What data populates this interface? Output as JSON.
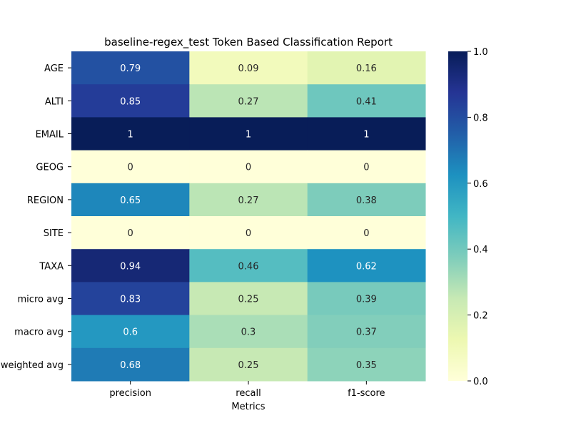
{
  "chart_data": {
    "type": "heatmap",
    "title": "baseline-regex_test Token Based Classification Report",
    "xlabel": "Metrics",
    "ylabel": "",
    "columns": [
      "precision",
      "recall",
      "f1-score"
    ],
    "rows": [
      "AGE",
      "ALTI",
      "EMAIL",
      "GEOG",
      "REGION",
      "SITE",
      "TAXA",
      "micro avg",
      "macro avg",
      "weighted avg"
    ],
    "values": [
      [
        0.79,
        0.09,
        0.16
      ],
      [
        0.85,
        0.27,
        0.41
      ],
      [
        1,
        1,
        1
      ],
      [
        0,
        0,
        0
      ],
      [
        0.65,
        0.27,
        0.38
      ],
      [
        0,
        0,
        0
      ],
      [
        0.94,
        0.46,
        0.62
      ],
      [
        0.83,
        0.25,
        0.39
      ],
      [
        0.6,
        0.3,
        0.37
      ],
      [
        0.68,
        0.25,
        0.35
      ]
    ],
    "colormap": "YlGnBu",
    "vmin": 0,
    "vmax": 1,
    "colorbar_ticks": [
      "0.0",
      "0.2",
      "0.4",
      "0.6",
      "0.8",
      "1.0"
    ],
    "grid": false
  }
}
